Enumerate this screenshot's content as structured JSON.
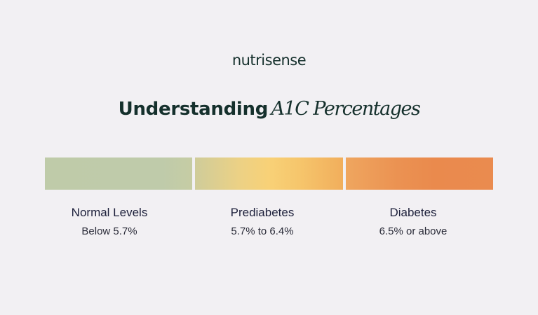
{
  "brand": {
    "logo_text": "nutrisense"
  },
  "header": {
    "title_plain": "Understanding",
    "title_italic": "A1C Percentages"
  },
  "colors": {
    "background": "#f2f0f3",
    "text_dark": "#15302c",
    "normal": "#bfcba9",
    "prediabetes": "#f8d177",
    "diabetes": "#ea8a4d"
  },
  "categories": [
    {
      "name": "Normal Levels",
      "range": "Below 5.7%"
    },
    {
      "name": "Prediabetes",
      "range": "5.7% to 6.4%"
    },
    {
      "name": "Diabetes",
      "range": "6.5% or above"
    }
  ]
}
